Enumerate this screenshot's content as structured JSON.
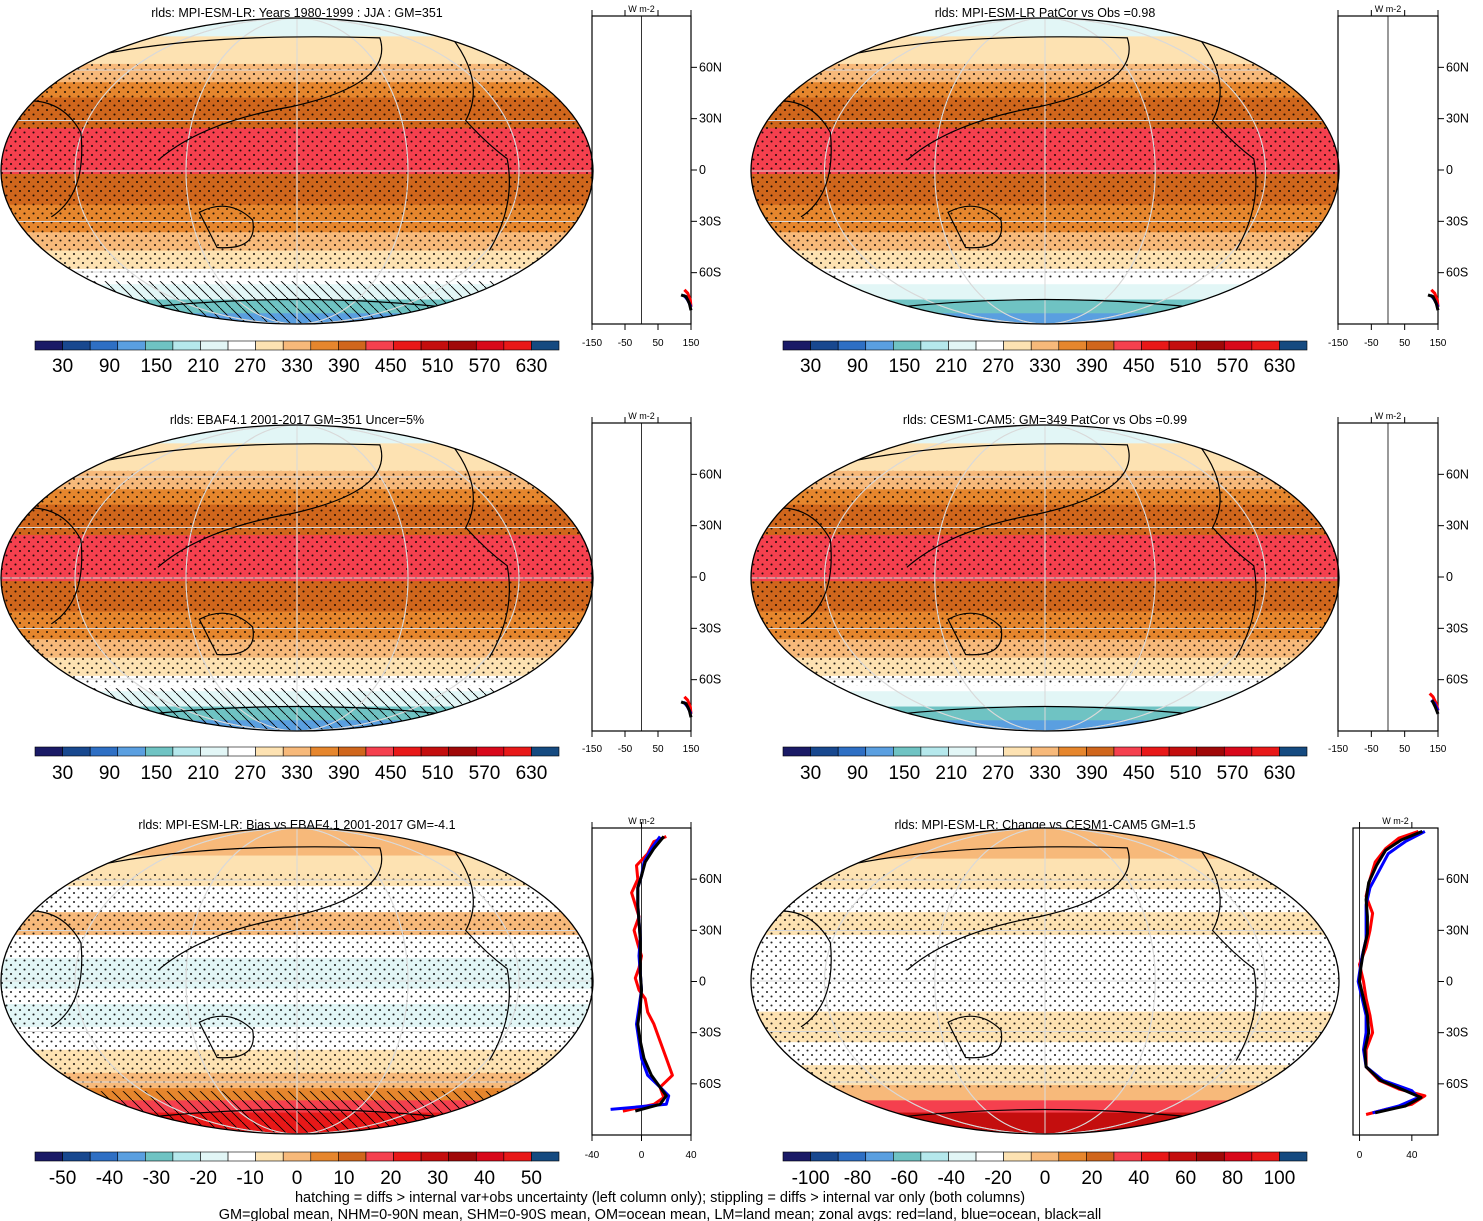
{
  "footer": {
    "line1": "hatching = diffs > internal var+obs uncertainty (left column only); stippling = diffs > internal var only (both columns)",
    "line2": "GM=global mean, NHM=0-90N mean, SHM=0-90S mean, OM=ocean mean, LM=land mean; zonal avgs: red=land, blue=ocean, black=all"
  },
  "colors": {
    "land": "#ff0000",
    "ocean": "#0000ff",
    "all": "#000000",
    "palette": [
      "#1a1a66",
      "#18488f",
      "#2e6fc4",
      "#5a9fe0",
      "#6fc3c3",
      "#b5e8ec",
      "#e2f6f6",
      "#ffffff",
      "#fde2b2",
      "#f7b97a",
      "#e6862d",
      "#d0661c",
      "#f5404e",
      "#e81818",
      "#c40e0e",
      "#a00808",
      "#d8081a",
      "#e81818",
      "#154a80"
    ]
  },
  "chart_data": [
    {
      "type": "heatmap",
      "title": "rlds: MPI-ESM-LR: Years 1980-1999 : JJA : GM=351",
      "colorbar_labels": [
        "30",
        "90",
        "150",
        "210",
        "270",
        "330",
        "390",
        "450",
        "510",
        "570",
        "630"
      ],
      "zonal_axis": {
        "ticks": [
          "-150",
          "-50",
          "50",
          "150"
        ],
        "unit": "W m-2",
        "xlim": [
          -150,
          150
        ]
      },
      "lat_labels": [
        "60N",
        "30N",
        "0",
        "30S",
        "60S"
      ],
      "zonal_series": [
        {
          "color": "red",
          "points": [
            [
              150,
              -80
            ],
            [
              148,
              -76
            ],
            [
              140,
              -72
            ],
            [
              130,
              -70
            ]
          ]
        },
        {
          "color": "blue",
          "points": [
            [
              150,
              -80
            ],
            [
              140,
              -76
            ],
            [
              128,
              -73
            ]
          ]
        },
        {
          "color": "black",
          "points": [
            [
              150,
              -82
            ],
            [
              145,
              -78
            ],
            [
              135,
              -74
            ],
            [
              120,
              -73
            ]
          ]
        }
      ]
    },
    {
      "type": "heatmap",
      "title": "rlds: MPI-ESM-LR PatCor vs Obs =0.98",
      "colorbar_labels": [
        "30",
        "90",
        "150",
        "210",
        "270",
        "330",
        "390",
        "450",
        "510",
        "570",
        "630"
      ],
      "zonal_axis": {
        "ticks": [
          "-150",
          "-50",
          "50",
          "150"
        ],
        "unit": "W m-2",
        "xlim": [
          -150,
          150
        ]
      },
      "lat_labels": [
        "60N",
        "30N",
        "0",
        "30S",
        "60S"
      ],
      "zonal_series": [
        {
          "color": "red",
          "points": [
            [
              150,
              -80
            ],
            [
              148,
              -76
            ],
            [
              140,
              -72
            ],
            [
              130,
              -70
            ]
          ]
        },
        {
          "color": "blue",
          "points": [
            [
              150,
              -80
            ],
            [
              140,
              -76
            ],
            [
              128,
              -73
            ]
          ]
        },
        {
          "color": "black",
          "points": [
            [
              150,
              -82
            ],
            [
              145,
              -78
            ],
            [
              135,
              -74
            ],
            [
              120,
              -73
            ]
          ]
        }
      ]
    },
    {
      "type": "heatmap",
      "title": "rlds: EBAF4.1 2001-2017 GM=351 Uncer=5%",
      "colorbar_labels": [
        "30",
        "90",
        "150",
        "210",
        "270",
        "330",
        "390",
        "450",
        "510",
        "570",
        "630"
      ],
      "zonal_axis": {
        "ticks": [
          "-150",
          "-50",
          "50",
          "150"
        ],
        "unit": "W m-2",
        "xlim": [
          -150,
          150
        ]
      },
      "lat_labels": [
        "60N",
        "30N",
        "0",
        "30S",
        "60S"
      ],
      "zonal_series": [
        {
          "color": "red",
          "points": [
            [
              150,
              -80
            ],
            [
              148,
              -76
            ],
            [
              140,
              -72
            ],
            [
              130,
              -70
            ]
          ]
        },
        {
          "color": "blue",
          "points": [
            [
              150,
              -80
            ],
            [
              140,
              -76
            ],
            [
              128,
              -73
            ]
          ]
        },
        {
          "color": "black",
          "points": [
            [
              150,
              -82
            ],
            [
              145,
              -78
            ],
            [
              135,
              -74
            ],
            [
              120,
              -73
            ]
          ]
        }
      ]
    },
    {
      "type": "heatmap",
      "title": "rlds: CESM1-CAM5: GM=349 PatCor vs Obs =0.99",
      "colorbar_labels": [
        "30",
        "90",
        "150",
        "210",
        "270",
        "330",
        "390",
        "450",
        "510",
        "570",
        "630"
      ],
      "zonal_axis": {
        "ticks": [
          "-150",
          "-50",
          "50",
          "150"
        ],
        "unit": "W m-2",
        "xlim": [
          -150,
          150
        ]
      },
      "lat_labels": [
        "60N",
        "30N",
        "0",
        "30S",
        "60S"
      ],
      "zonal_series": [
        {
          "color": "red",
          "points": [
            [
              150,
              -78
            ],
            [
              145,
              -74
            ],
            [
              135,
              -70
            ],
            [
              125,
              -68
            ]
          ]
        },
        {
          "color": "blue",
          "points": [
            [
              150,
              -78
            ],
            [
              140,
              -74
            ],
            [
              130,
              -72
            ]
          ]
        },
        {
          "color": "black",
          "points": [
            [
              150,
              -80
            ],
            [
              142,
              -76
            ],
            [
              132,
              -72
            ]
          ]
        }
      ]
    },
    {
      "type": "heatmap",
      "title": "rlds: MPI-ESM-LR: Bias vs EBAF4.1 2001-2017 GM=-4.1",
      "colorbar_labels": [
        "-50",
        "-40",
        "-30",
        "-20",
        "-10",
        "0",
        "10",
        "20",
        "30",
        "40",
        "50"
      ],
      "zonal_axis": {
        "ticks": [
          "-40",
          "0",
          "40"
        ],
        "unit": "W m-2",
        "xlim": [
          -40,
          40
        ]
      },
      "lat_labels": [
        "60N",
        "30N",
        "0",
        "30S",
        "60S"
      ],
      "zonal_series": [
        {
          "color": "red",
          "points": [
            [
              20,
              85
            ],
            [
              10,
              82
            ],
            [
              5,
              75
            ],
            [
              -4,
              68
            ],
            [
              -3,
              60
            ],
            [
              -8,
              52
            ],
            [
              -5,
              45
            ],
            [
              -2,
              38
            ],
            [
              -6,
              30
            ],
            [
              -3,
              22
            ],
            [
              0,
              15
            ],
            [
              -2,
              8
            ],
            [
              -5,
              2
            ],
            [
              -2,
              -5
            ],
            [
              3,
              -10
            ],
            [
              5,
              -18
            ],
            [
              10,
              -25
            ],
            [
              15,
              -35
            ],
            [
              20,
              -45
            ],
            [
              25,
              -55
            ],
            [
              15,
              -62
            ],
            [
              18,
              -68
            ],
            [
              10,
              -72
            ],
            [
              -15,
              -76
            ]
          ]
        },
        {
          "color": "blue",
          "points": [
            [
              15,
              85
            ],
            [
              8,
              78
            ],
            [
              2,
              70
            ],
            [
              0,
              62
            ],
            [
              -3,
              55
            ],
            [
              -3,
              45
            ],
            [
              -2,
              35
            ],
            [
              -1,
              25
            ],
            [
              -2,
              15
            ],
            [
              -1,
              5
            ],
            [
              0,
              -5
            ],
            [
              -2,
              -15
            ],
            [
              -4,
              -25
            ],
            [
              -2,
              -35
            ],
            [
              0,
              -45
            ],
            [
              5,
              -55
            ],
            [
              15,
              -62
            ],
            [
              22,
              -67
            ],
            [
              20,
              -72
            ],
            [
              -25,
              -75
            ]
          ]
        },
        {
          "color": "black",
          "points": [
            [
              18,
              85
            ],
            [
              10,
              78
            ],
            [
              3,
              70
            ],
            [
              0,
              62
            ],
            [
              -3,
              55
            ],
            [
              -3,
              45
            ],
            [
              -2,
              35
            ],
            [
              -1,
              25
            ],
            [
              -1,
              15
            ],
            [
              -1,
              5
            ],
            [
              0,
              -5
            ],
            [
              -1,
              -15
            ],
            [
              -3,
              -25
            ],
            [
              -1,
              -35
            ],
            [
              2,
              -45
            ],
            [
              8,
              -55
            ],
            [
              15,
              -62
            ],
            [
              20,
              -67
            ],
            [
              15,
              -72
            ],
            [
              -5,
              -76
            ]
          ]
        }
      ]
    },
    {
      "type": "heatmap",
      "title": "rlds: MPI-ESM-LR: Change vs CESM1-CAM5 GM=1.5",
      "colorbar_labels": [
        "-100",
        "-80",
        "-60",
        "-40",
        "-20",
        "0",
        "20",
        "40",
        "60",
        "80",
        "100"
      ],
      "zonal_axis": {
        "ticks": [
          "0",
          "40"
        ],
        "unit": "W m-2",
        "xlim": [
          -5,
          60
        ]
      },
      "lat_labels": [
        "60N",
        "30N",
        "0",
        "30S",
        "60S"
      ],
      "zonal_series": [
        {
          "color": "red",
          "points": [
            [
              45,
              88
            ],
            [
              30,
              84
            ],
            [
              20,
              78
            ],
            [
              12,
              70
            ],
            [
              8,
              60
            ],
            [
              5,
              50
            ],
            [
              10,
              40
            ],
            [
              8,
              30
            ],
            [
              5,
              20
            ],
            [
              0,
              10
            ],
            [
              3,
              0
            ],
            [
              5,
              -10
            ],
            [
              8,
              -20
            ],
            [
              10,
              -30
            ],
            [
              5,
              -40
            ],
            [
              5,
              -50
            ],
            [
              15,
              -58
            ],
            [
              30,
              -63
            ],
            [
              50,
              -67
            ],
            [
              40,
              -72
            ],
            [
              20,
              -75
            ],
            [
              5,
              -78
            ]
          ]
        },
        {
          "color": "blue",
          "points": [
            [
              50,
              88
            ],
            [
              35,
              82
            ],
            [
              22,
              75
            ],
            [
              15,
              65
            ],
            [
              8,
              55
            ],
            [
              5,
              45
            ],
            [
              5,
              35
            ],
            [
              5,
              25
            ],
            [
              2,
              15
            ],
            [
              0,
              5
            ],
            [
              -1,
              0
            ],
            [
              2,
              -10
            ],
            [
              5,
              -20
            ],
            [
              5,
              -30
            ],
            [
              3,
              -40
            ],
            [
              5,
              -50
            ],
            [
              18,
              -58
            ],
            [
              40,
              -64
            ],
            [
              45,
              -68
            ],
            [
              30,
              -73
            ],
            [
              10,
              -77
            ]
          ]
        },
        {
          "color": "black",
          "points": [
            [
              48,
              88
            ],
            [
              32,
              83
            ],
            [
              20,
              77
            ],
            [
              13,
              68
            ],
            [
              7,
              58
            ],
            [
              5,
              48
            ],
            [
              6,
              38
            ],
            [
              6,
              28
            ],
            [
              3,
              18
            ],
            [
              1,
              8
            ],
            [
              0,
              0
            ],
            [
              3,
              -10
            ],
            [
              6,
              -20
            ],
            [
              7,
              -30
            ],
            [
              4,
              -40
            ],
            [
              5,
              -50
            ],
            [
              16,
              -58
            ],
            [
              35,
              -64
            ],
            [
              47,
              -68
            ],
            [
              35,
              -73
            ],
            [
              12,
              -77
            ]
          ]
        }
      ]
    }
  ]
}
